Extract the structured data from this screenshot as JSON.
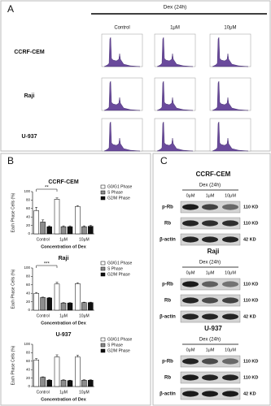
{
  "panel_labels": [
    "A",
    "B",
    "C"
  ],
  "panel_a": {
    "header": "Dex (24h)",
    "columns": [
      "Control",
      "1μM",
      "10μM"
    ],
    "rows": [
      "CCRF-CEM",
      "Raji",
      "U-937"
    ]
  },
  "chart_data": [
    {
      "type": "bar",
      "title": "CCRF-CEM",
      "y_label": "Each Phase Cells (%)",
      "x_label": "Concentration of Dex",
      "categories": [
        "Control",
        "1μM",
        "10μM"
      ],
      "ylim": [
        0,
        100
      ],
      "yticks": [
        0,
        20,
        40,
        60,
        80,
        100
      ],
      "annotation": "**",
      "series": [
        {
          "name": "G0/G1 Phase",
          "color": "#ffffff",
          "values": [
            55,
            82,
            65
          ],
          "errors": [
            8,
            3,
            2
          ]
        },
        {
          "name": "S Phase",
          "color": "#8c8c8c",
          "values": [
            28,
            17,
            17
          ],
          "errors": [
            5,
            2,
            2
          ]
        },
        {
          "name": "G2/M Phase",
          "color": "#111111",
          "values": [
            17,
            17,
            18
          ],
          "errors": [
            2,
            2,
            2
          ]
        }
      ]
    },
    {
      "type": "bar",
      "title": "Raji",
      "y_label": "Each Phase Cells (%)",
      "x_label": "Concentration of Dex",
      "categories": [
        "Control",
        "1μM",
        "10μM"
      ],
      "ylim": [
        0,
        100
      ],
      "yticks": [
        0,
        20,
        40,
        60,
        80,
        100
      ],
      "annotation": "***",
      "series": [
        {
          "name": "G0/G1 Phase",
          "color": "#ffffff",
          "values": [
            40,
            62,
            63
          ],
          "errors": [
            2,
            4,
            2
          ]
        },
        {
          "name": "S Phase",
          "color": "#8c8c8c",
          "values": [
            30,
            17,
            18
          ],
          "errors": [
            1,
            1,
            1
          ]
        },
        {
          "name": "G2/M Phase",
          "color": "#111111",
          "values": [
            29,
            17,
            18
          ],
          "errors": [
            1,
            1,
            1
          ]
        }
      ]
    },
    {
      "type": "bar",
      "title": "U-937",
      "y_label": "Each Phase Cells (%)",
      "x_label": "Concentration of Dex",
      "categories": [
        "Control",
        "1μM",
        "10μM"
      ],
      "ylim": [
        0,
        100
      ],
      "yticks": [
        0,
        20,
        40,
        60,
        80,
        100
      ],
      "series": [
        {
          "name": "G0/G1 Phase",
          "color": "#ffffff",
          "values": [
            63,
            70,
            70
          ],
          "errors": [
            3,
            5,
            4
          ]
        },
        {
          "name": "S Phase",
          "color": "#8c8c8c",
          "values": [
            22,
            15,
            15
          ],
          "errors": [
            1,
            1,
            1
          ]
        },
        {
          "name": "G2/M Phase",
          "color": "#111111",
          "values": [
            15,
            14,
            15
          ],
          "errors": [
            1,
            1,
            1
          ]
        }
      ]
    }
  ],
  "panel_c": {
    "blocks": [
      {
        "title": "CCRF-CEM",
        "treatment": "Dex (24h)",
        "columns": [
          "0μM",
          "1μM",
          "10μM"
        ],
        "rows": [
          "p-Rb",
          "Rb",
          "β-actin"
        ],
        "sizes": [
          "110 KD",
          "110 KD",
          "42 KD"
        ]
      },
      {
        "title": "Raji",
        "treatment": "Dex (24h)",
        "columns": [
          "0μM",
          "1μM",
          "10μM"
        ],
        "rows": [
          "p-Rb",
          "Rb",
          "β-actin"
        ],
        "sizes": [
          "110 KD",
          "110 KD",
          "42 KD"
        ]
      },
      {
        "title": "U-937",
        "treatment": "Dex (24h)",
        "columns": [
          "0μM",
          "1μM",
          "10μM"
        ],
        "rows": [
          "p-Rb",
          "Rb",
          "β-actin"
        ],
        "sizes": [
          "110 KD",
          "110 KD",
          "42 KD"
        ]
      }
    ]
  }
}
